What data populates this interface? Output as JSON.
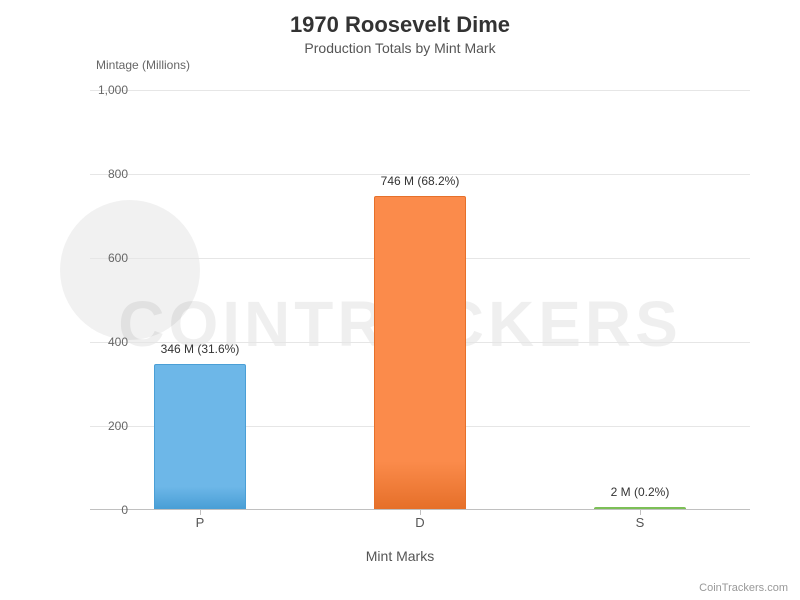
{
  "chart": {
    "type": "bar",
    "title": "1970 Roosevelt Dime",
    "subtitle": "Production Totals by Mint Mark",
    "title_fontsize": 22,
    "subtitle_fontsize": 14,
    "title_color": "#333333",
    "subtitle_color": "#555555",
    "background_color": "#ffffff",
    "y_axis": {
      "title": "Mintage (Millions)",
      "min": 0,
      "max": 1000,
      "tick_step": 200,
      "ticks": [
        0,
        200,
        400,
        600,
        800,
        1000
      ],
      "tick_labels": [
        "0",
        "200",
        "400",
        "600",
        "800",
        "1,000"
      ],
      "label_fontsize": 12,
      "label_color": "#666666",
      "grid_color": "#e6e6e6",
      "axis_line_color": "#c0c0c0"
    },
    "x_axis": {
      "title": "Mint Marks",
      "label_fontsize": 14,
      "label_color": "#555555",
      "tick_fontsize": 13,
      "categories": [
        "P",
        "D",
        "S"
      ]
    },
    "bars": [
      {
        "category": "P",
        "value": 346,
        "percent": 31.6,
        "label": "346 M (31.6%)",
        "fill": "#6db7e8",
        "border": "#4a9fd6"
      },
      {
        "category": "D",
        "value": 746,
        "percent": 68.2,
        "label": "746 M (68.2%)",
        "fill": "#fb8b4b",
        "border": "#e6702a"
      },
      {
        "category": "S",
        "value": 2,
        "percent": 0.2,
        "label": "2 M (0.2%)",
        "fill": "#9ed87a",
        "border": "#7cbf56"
      }
    ],
    "bar_width_ratio": 0.42,
    "bar_label_fontsize": 12,
    "bar_label_color": "#333333",
    "watermark_text": "COINTRACKERS",
    "watermark_opacity": 0.06,
    "attribution": "CoinTrackers.com",
    "attribution_color": "#999999"
  }
}
